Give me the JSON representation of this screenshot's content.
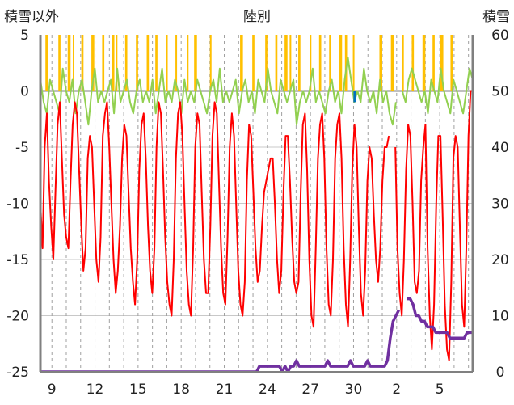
{
  "chart_data": {
    "type": "line",
    "title": "陸別",
    "left_axis": {
      "label": "積雪以外",
      "ylim": [
        -25,
        5
      ],
      "ticks": [
        "5",
        "0",
        "-5",
        "-10",
        "-15",
        "-20",
        "-25"
      ]
    },
    "right_axis": {
      "label": "積雪",
      "ylim": [
        0,
        60
      ],
      "ticks": [
        "60",
        "50",
        "40",
        "30",
        "20",
        "10",
        "0"
      ]
    },
    "x_ticks": [
      "9",
      "12",
      "15",
      "18",
      "21",
      "24",
      "27",
      "30",
      "2",
      "5"
    ],
    "grid": true,
    "colors": {
      "temperature": "#ff0000",
      "sunshine": "#ffc000",
      "wind": "#92d050",
      "snow_depth": "#7030a0",
      "precip": "#0070c0"
    },
    "series": [
      {
        "key": "temperature",
        "axis": "left",
        "values": [
          -10,
          -14,
          -5,
          -2,
          -8,
          -12,
          -15,
          -9,
          -3,
          -1,
          -6,
          -11,
          -13,
          -14,
          -8,
          -3,
          -1,
          -2,
          -7,
          -12,
          -16,
          -14,
          -6,
          -4,
          -5,
          -10,
          -15,
          -17,
          -13,
          -4,
          -2,
          -1,
          -5,
          -10,
          -15,
          -18,
          -16,
          -12,
          -6,
          -3,
          -4,
          -9,
          -14,
          -17,
          -19,
          -15,
          -7,
          -3,
          -2,
          -6,
          -12,
          -16,
          -18,
          -14,
          -5,
          -1,
          -2,
          -7,
          -13,
          -17,
          -19,
          -20,
          -15,
          -6,
          -2,
          -1,
          -4,
          -10,
          -16,
          -19,
          -20,
          -14,
          -5,
          -2,
          -3,
          -9,
          -15,
          -18,
          -18,
          -12,
          -4,
          -1,
          -2,
          -8,
          -14,
          -18,
          -19,
          -13,
          -5,
          -2,
          -4,
          -10,
          -16,
          -19,
          -20,
          -17,
          -8,
          -3,
          -4,
          -9,
          -14,
          -17,
          -16,
          -12,
          -9,
          -8,
          -7,
          -6,
          -6,
          -10,
          -15,
          -18,
          -16,
          -9,
          -4,
          -4,
          -8,
          -13,
          -17,
          -18,
          -17,
          -9,
          -3,
          -2,
          -7,
          -15,
          -20,
          -21,
          -14,
          -6,
          -3,
          -2,
          -6,
          -14,
          -19,
          -20,
          -15,
          -6,
          -3,
          -2,
          -6,
          -14,
          -19,
          -21,
          -15,
          -7,
          -3,
          -5,
          -12,
          -18,
          -20,
          -16,
          -8,
          -5,
          -6,
          -11,
          -15,
          -17,
          -14,
          -8,
          -5,
          -5,
          -4,
          null,
          null,
          -5,
          -14,
          -18,
          -20,
          -15,
          -7,
          -3,
          -4,
          -10,
          -17,
          -18,
          -16,
          -8,
          -5,
          -3,
          -14,
          -20,
          -23,
          -19,
          -10,
          -4,
          -4,
          -11,
          -19,
          -23,
          -24,
          -17,
          -6,
          -4,
          -5,
          -12,
          -19,
          -21,
          -14,
          -4,
          0,
          0
        ],
        "x_range": [
          8.2,
          38.3
        ]
      },
      {
        "key": "wind",
        "axis": "left",
        "values": [
          1,
          -1,
          -2,
          1,
          0,
          -1,
          -2,
          2,
          0,
          -1,
          1,
          -2,
          0,
          1,
          -1,
          -3,
          0,
          2,
          -1,
          0,
          -1,
          0,
          1,
          -2,
          2,
          -1,
          0,
          1,
          -1,
          -2,
          0,
          1,
          -1,
          0,
          -1,
          1,
          -2,
          0,
          2,
          -1,
          0,
          -1,
          1,
          0,
          -2,
          1,
          -1,
          0,
          -1,
          1,
          0,
          -1,
          -2,
          0,
          1,
          -1,
          2,
          -1,
          0,
          -1,
          0,
          1,
          -2,
          0,
          1,
          -1,
          0,
          -2,
          1,
          0,
          -1,
          2,
          0,
          -1,
          -2,
          1,
          0,
          -1,
          0,
          1,
          -3,
          -1,
          0,
          -1,
          0,
          2,
          -1,
          0,
          -1,
          -2,
          0,
          1,
          -1,
          0,
          -2,
          1,
          3,
          1,
          -1,
          0,
          -1,
          2,
          0,
          -1,
          0,
          -2,
          1,
          -1,
          0,
          -2,
          -3,
          -1,
          null,
          0,
          -1,
          1,
          2,
          1,
          0,
          -1,
          0,
          -2,
          1,
          0,
          -1,
          2,
          0,
          -1,
          -2,
          1,
          0,
          -1,
          -2,
          0,
          2,
          1
        ],
        "x_range": [
          8.2,
          38.3
        ]
      },
      {
        "key": "snow_depth",
        "axis": "right",
        "values": [
          0,
          0,
          0,
          0,
          0,
          0,
          0,
          0,
          0,
          0,
          0,
          0,
          0,
          0,
          0,
          0,
          0,
          0,
          0,
          0,
          0,
          0,
          0,
          0,
          0,
          0,
          0,
          0,
          0,
          0,
          0,
          0,
          0,
          0,
          0,
          0,
          0,
          0,
          0,
          0,
          0,
          0,
          0,
          0,
          0,
          0,
          0,
          0,
          0,
          0,
          0,
          0,
          0,
          0,
          0,
          0,
          0,
          0,
          0,
          0,
          0,
          0,
          0,
          0,
          0,
          0,
          0,
          0,
          0,
          0,
          0,
          0,
          0,
          0,
          0,
          0,
          0,
          1,
          1,
          1,
          1,
          1,
          1,
          1,
          1,
          0,
          1,
          0,
          1,
          1,
          2,
          1,
          1,
          1,
          1,
          1,
          1,
          1,
          1,
          1,
          1,
          2,
          1,
          1,
          1,
          1,
          1,
          1,
          1,
          2,
          1,
          1,
          1,
          1,
          1,
          2,
          1,
          1,
          1,
          1,
          1,
          1,
          2,
          6,
          9,
          10,
          11,
          null,
          null,
          13,
          13,
          12,
          10,
          10,
          9,
          9,
          8,
          8,
          8,
          7,
          7,
          7,
          7,
          7,
          6,
          6,
          6,
          6,
          6,
          6,
          7,
          7,
          7
        ],
        "x_range": [
          8.2,
          38.3
        ]
      }
    ],
    "sunshine_segments": [
      [
        8.55,
        8.75
      ],
      [
        9.45,
        9.6
      ],
      [
        10.1,
        10.3
      ],
      [
        10.45,
        10.55
      ],
      [
        11.05,
        11.2
      ],
      [
        11.75,
        11.95
      ],
      [
        12.5,
        12.65
      ],
      [
        13.2,
        13.35
      ],
      [
        13.45,
        13.55
      ],
      [
        14.1,
        14.25
      ],
      [
        14.85,
        15.0
      ],
      [
        15.6,
        15.75
      ],
      [
        16.2,
        16.35
      ],
      [
        16.95,
        17.05
      ],
      [
        17.6,
        17.7
      ],
      [
        18.4,
        18.5
      ],
      [
        18.9,
        19.1
      ],
      [
        20.0,
        20.1
      ],
      [
        22.1,
        22.3
      ],
      [
        22.95,
        23.1
      ],
      [
        23.85,
        24.0
      ],
      [
        24.55,
        24.7
      ],
      [
        25.2,
        25.4
      ],
      [
        25.55,
        25.65
      ],
      [
        26.15,
        26.3
      ],
      [
        26.95,
        27.05
      ],
      [
        27.6,
        27.75
      ],
      [
        28.3,
        28.45
      ],
      [
        29.0,
        29.2
      ],
      [
        29.4,
        29.55
      ],
      [
        29.95,
        30.05
      ],
      [
        31.8,
        32.0
      ],
      [
        32.6,
        32.8
      ],
      [
        33.35,
        33.5
      ],
      [
        34.05,
        34.2
      ],
      [
        34.8,
        35.0
      ],
      [
        35.5,
        35.65
      ],
      [
        36.05,
        36.25
      ],
      [
        36.75,
        36.9
      ]
    ],
    "precip_marks": [
      [
        30.08,
        -1
      ]
    ]
  }
}
